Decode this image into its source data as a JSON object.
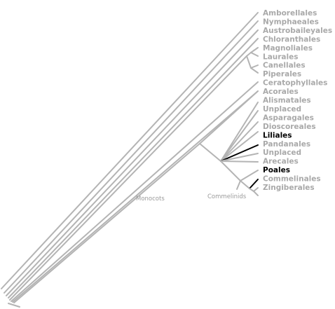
{
  "tree": {
    "leaves": [
      {
        "label": "Amborellales",
        "highlight": false
      },
      {
        "label": "Nymphaeales",
        "highlight": false
      },
      {
        "label": "Austrobaileyales",
        "highlight": false
      },
      {
        "label": "Chloranthales",
        "highlight": false
      },
      {
        "label": "Magnoliales",
        "highlight": false
      },
      {
        "label": "Laurales",
        "highlight": false
      },
      {
        "label": "Canellales",
        "highlight": false
      },
      {
        "label": "Piperales",
        "highlight": false
      },
      {
        "label": "Ceratophyllales",
        "highlight": false
      },
      {
        "label": "Acorales",
        "highlight": false
      },
      {
        "label": "Alismatales",
        "highlight": false
      },
      {
        "label": "Unplaced",
        "highlight": false
      },
      {
        "label": "Asparagales",
        "highlight": false
      },
      {
        "label": "Dioscoreales",
        "highlight": false
      },
      {
        "label": "Liliales",
        "highlight": true
      },
      {
        "label": "Pandanales",
        "highlight": false
      },
      {
        "label": "Unplaced",
        "highlight": false
      },
      {
        "label": "Arecales",
        "highlight": false
      },
      {
        "label": "Poales",
        "highlight": true
      },
      {
        "label": "Commelinales",
        "highlight": false
      },
      {
        "label": "Zingiberales",
        "highlight": false
      }
    ],
    "clade_labels": {
      "monocots": "Monocots",
      "commelinids": "Commelinids"
    },
    "colors": {
      "branch": "#b4b4b4",
      "highlight": "#000000",
      "leaf_text": "#a9a9a9",
      "clade_text": "#9a9a9a"
    }
  }
}
